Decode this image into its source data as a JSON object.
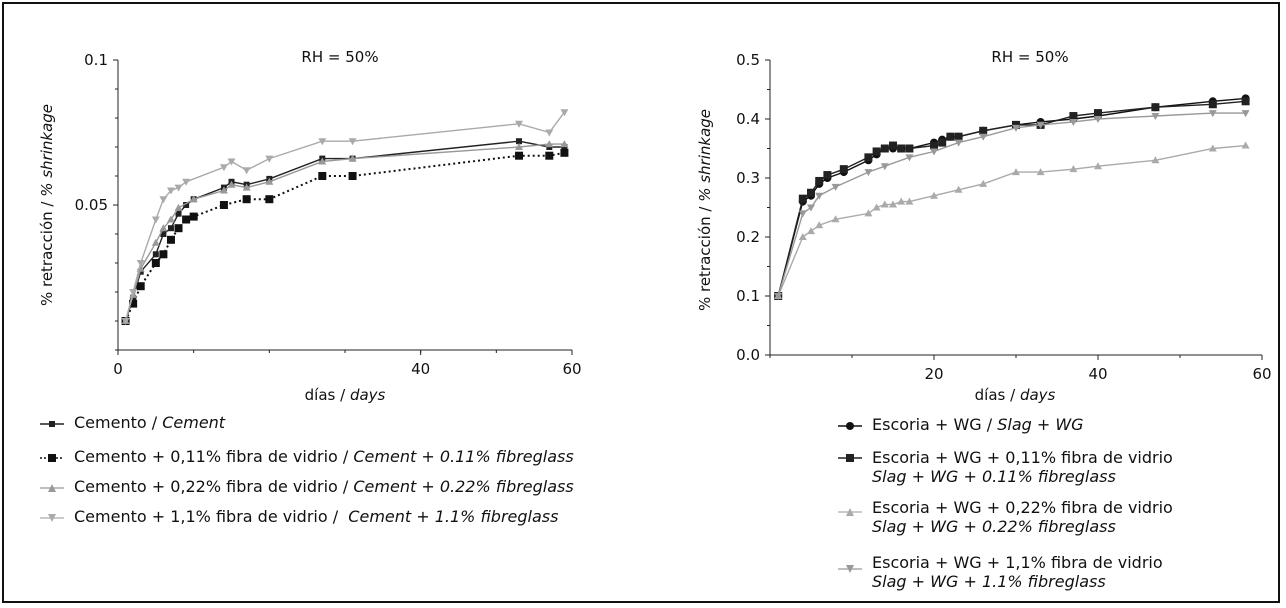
{
  "chart_data": [
    {
      "type": "line",
      "title": "RH = 50%",
      "xlabel_es": "días",
      "xlabel_en": "days",
      "ylabel_es": "% retracción",
      "ylabel_en": "% shrinkage",
      "xlim": [
        0,
        60
      ],
      "ylim": [
        0,
        0.1
      ],
      "xticks": [
        "0",
        "40",
        "60"
      ],
      "yticks": [
        "0.05",
        "0.1"
      ],
      "grid": false,
      "legend_position": "bottom",
      "series": [
        {
          "name_es": "Cemento",
          "name_en": "Cement",
          "color": "#222222",
          "marker": "square-small",
          "dash": "solid",
          "points": [
            [
              1,
              0.01
            ],
            [
              2,
              0.018
            ],
            [
              3,
              0.027
            ],
            [
              5,
              0.033
            ],
            [
              6,
              0.04
            ],
            [
              7,
              0.042
            ],
            [
              8,
              0.047
            ],
            [
              9,
              0.05
            ],
            [
              10,
              0.052
            ],
            [
              14,
              0.056
            ],
            [
              15,
              0.058
            ],
            [
              17,
              0.057
            ],
            [
              20,
              0.059
            ],
            [
              27,
              0.066
            ],
            [
              31,
              0.066
            ],
            [
              53,
              0.072
            ],
            [
              57,
              0.07
            ],
            [
              59,
              0.07
            ]
          ]
        },
        {
          "name_es": "Cemento + 0,11% fibra de vidrio",
          "name_en": "Cement + 0.11% fibreglass",
          "color": "#111111",
          "marker": "square",
          "dash": "dotted",
          "points": [
            [
              1,
              0.01
            ],
            [
              2,
              0.016
            ],
            [
              3,
              0.022
            ],
            [
              5,
              0.03
            ],
            [
              6,
              0.033
            ],
            [
              7,
              0.038
            ],
            [
              8,
              0.042
            ],
            [
              9,
              0.045
            ],
            [
              10,
              0.046
            ],
            [
              14,
              0.05
            ],
            [
              17,
              0.052
            ],
            [
              20,
              0.052
            ],
            [
              27,
              0.06
            ],
            [
              31,
              0.06
            ],
            [
              53,
              0.067
            ],
            [
              57,
              0.067
            ],
            [
              59,
              0.068
            ]
          ]
        },
        {
          "name_es": "Cemento + 0,22% fibra de vidrio",
          "name_en": "Cement + 0.22% fibreglass",
          "color": "#999999",
          "marker": "triangle",
          "dash": "solid",
          "points": [
            [
              1,
              0.01
            ],
            [
              2,
              0.019
            ],
            [
              3,
              0.028
            ],
            [
              5,
              0.037
            ],
            [
              6,
              0.042
            ],
            [
              7,
              0.045
            ],
            [
              8,
              0.049
            ],
            [
              10,
              0.052
            ],
            [
              14,
              0.055
            ],
            [
              15,
              0.057
            ],
            [
              17,
              0.056
            ],
            [
              20,
              0.058
            ],
            [
              27,
              0.065
            ],
            [
              31,
              0.066
            ],
            [
              53,
              0.07
            ],
            [
              57,
              0.071
            ],
            [
              59,
              0.071
            ]
          ]
        },
        {
          "name_es": "Cemento + 1,1% fibra de vidrio",
          "name_en": "Cement + 1.1% fibreglass",
          "color": "#aaaaaa",
          "marker": "triangle-down",
          "dash": "solid",
          "points": [
            [
              1,
              0.01
            ],
            [
              2,
              0.02
            ],
            [
              3,
              0.03
            ],
            [
              5,
              0.045
            ],
            [
              6,
              0.052
            ],
            [
              7,
              0.055
            ],
            [
              8,
              0.056
            ],
            [
              9,
              0.058
            ],
            [
              14,
              0.063
            ],
            [
              15,
              0.065
            ],
            [
              17,
              0.062
            ],
            [
              20,
              0.066
            ],
            [
              27,
              0.072
            ],
            [
              31,
              0.072
            ],
            [
              53,
              0.078
            ],
            [
              57,
              0.075
            ],
            [
              59,
              0.082
            ]
          ]
        }
      ]
    },
    {
      "type": "line",
      "title": "RH = 50%",
      "xlabel_es": "días",
      "xlabel_en": "days",
      "ylabel_es": "% retracción",
      "ylabel_en": "% shrinkage",
      "xlim": [
        0,
        60
      ],
      "ylim": [
        0,
        0.5
      ],
      "xticks": [
        "20",
        "40",
        "60"
      ],
      "yticks": [
        "0.0",
        "0.1",
        "0.2",
        "0.3",
        "0.4",
        "0.5"
      ],
      "grid": false,
      "legend_position": "bottom",
      "series": [
        {
          "name_es": "Escoria + WG",
          "name_en": "Slag + WG",
          "color": "#111111",
          "marker": "circle",
          "dash": "solid",
          "points": [
            [
              1,
              0.1
            ],
            [
              4,
              0.26
            ],
            [
              5,
              0.27
            ],
            [
              6,
              0.29
            ],
            [
              7,
              0.3
            ],
            [
              9,
              0.31
            ],
            [
              12,
              0.33
            ],
            [
              13,
              0.34
            ],
            [
              14,
              0.35
            ],
            [
              15,
              0.35
            ],
            [
              16,
              0.35
            ],
            [
              17,
              0.35
            ],
            [
              20,
              0.36
            ],
            [
              21,
              0.365
            ],
            [
              22,
              0.37
            ],
            [
              23,
              0.37
            ],
            [
              26,
              0.38
            ],
            [
              30,
              0.39
            ],
            [
              33,
              0.395
            ],
            [
              37,
              0.4
            ],
            [
              40,
              0.405
            ],
            [
              47,
              0.42
            ],
            [
              54,
              0.43
            ],
            [
              58,
              0.435
            ]
          ]
        },
        {
          "name_es": "Escoria + WG + 0,11% fibra de vidrio",
          "name_en": "Slag + WG + 0.11% fibreglass",
          "color": "#222222",
          "marker": "square",
          "dash": "solid",
          "points": [
            [
              1,
              0.1
            ],
            [
              4,
              0.265
            ],
            [
              5,
              0.275
            ],
            [
              6,
              0.295
            ],
            [
              7,
              0.305
            ],
            [
              9,
              0.315
            ],
            [
              12,
              0.335
            ],
            [
              13,
              0.345
            ],
            [
              14,
              0.35
            ],
            [
              15,
              0.355
            ],
            [
              16,
              0.35
            ],
            [
              17,
              0.35
            ],
            [
              20,
              0.355
            ],
            [
              21,
              0.36
            ],
            [
              22,
              0.37
            ],
            [
              23,
              0.37
            ],
            [
              26,
              0.38
            ],
            [
              30,
              0.39
            ],
            [
              33,
              0.39
            ],
            [
              37,
              0.405
            ],
            [
              40,
              0.41
            ],
            [
              47,
              0.42
            ],
            [
              54,
              0.425
            ],
            [
              58,
              0.43
            ]
          ]
        },
        {
          "name_es": "Escoria + WG + 0,22% fibra de vidrio",
          "name_en": "Slag + WG + 0.22% fibreglass",
          "color": "#aaaaaa",
          "marker": "triangle",
          "dash": "solid",
          "points": [
            [
              1,
              0.1
            ],
            [
              4,
              0.2
            ],
            [
              5,
              0.21
            ],
            [
              6,
              0.22
            ],
            [
              8,
              0.23
            ],
            [
              12,
              0.24
            ],
            [
              13,
              0.25
            ],
            [
              14,
              0.255
            ],
            [
              15,
              0.255
            ],
            [
              16,
              0.26
            ],
            [
              17,
              0.26
            ],
            [
              20,
              0.27
            ],
            [
              23,
              0.28
            ],
            [
              26,
              0.29
            ],
            [
              30,
              0.31
            ],
            [
              33,
              0.31
            ],
            [
              37,
              0.315
            ],
            [
              40,
              0.32
            ],
            [
              47,
              0.33
            ],
            [
              54,
              0.35
            ],
            [
              58,
              0.355
            ]
          ]
        },
        {
          "name_es": "Escoria + WG + 1,1% fibra de vidrio",
          "name_en": "Slag + WG + 1.1% fibreglass",
          "color": "#999999",
          "marker": "triangle-down",
          "dash": "solid",
          "points": [
            [
              1,
              0.1
            ],
            [
              4,
              0.24
            ],
            [
              5,
              0.25
            ],
            [
              6,
              0.27
            ],
            [
              8,
              0.285
            ],
            [
              12,
              0.31
            ],
            [
              14,
              0.32
            ],
            [
              17,
              0.335
            ],
            [
              20,
              0.345
            ],
            [
              23,
              0.36
            ],
            [
              26,
              0.37
            ],
            [
              30,
              0.385
            ],
            [
              33,
              0.39
            ],
            [
              37,
              0.395
            ],
            [
              40,
              0.4
            ],
            [
              47,
              0.405
            ],
            [
              54,
              0.41
            ],
            [
              58,
              0.41
            ]
          ]
        }
      ]
    }
  ]
}
